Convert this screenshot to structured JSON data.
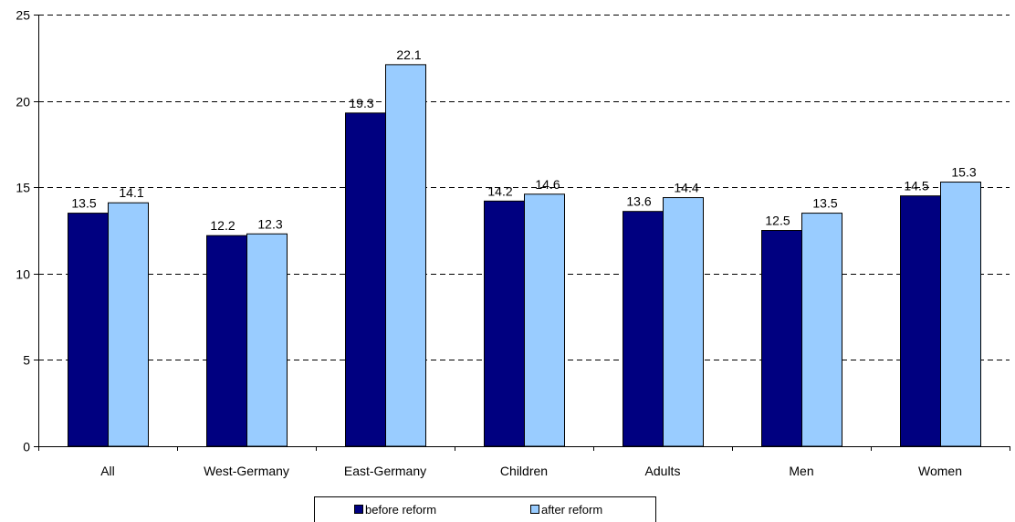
{
  "chart_data": {
    "type": "bar",
    "categories": [
      "All",
      "West-Germany",
      "East-Germany",
      "Children",
      "Adults",
      "Men",
      "Women"
    ],
    "series": [
      {
        "name": "before reform",
        "values": [
          13.5,
          12.2,
          19.3,
          14.2,
          13.6,
          12.5,
          14.5
        ],
        "color": "#000080"
      },
      {
        "name": "after reform",
        "values": [
          14.1,
          12.3,
          22.1,
          14.6,
          14.4,
          13.5,
          15.3
        ],
        "color": "#99CCFF"
      }
    ],
    "ylim": [
      0,
      25
    ],
    "yticks": [
      0,
      5,
      10,
      15,
      20,
      25
    ],
    "grid": "dashed-horizontal",
    "legend_position": "bottom-center",
    "title": "",
    "xlabel": "",
    "ylabel": ""
  }
}
